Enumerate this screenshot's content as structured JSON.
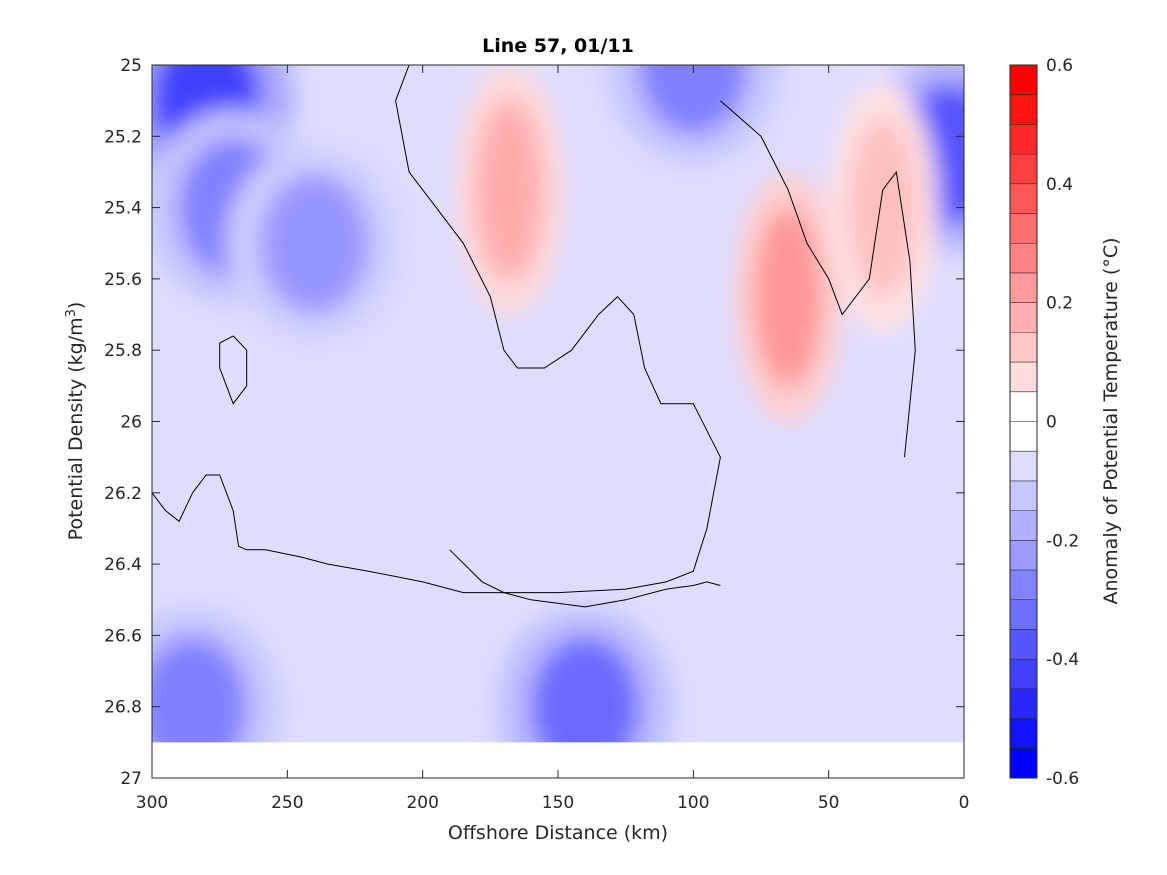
{
  "chart_data": {
    "type": "heatmap",
    "subtype": "filled-contour",
    "title": "Line 57, 01/11",
    "xlabel": "Offshore Distance (km)",
    "ylabel": "Potential Density (kg/m",
    "ylabel_superscript": "3",
    "ylabel_suffix": ")",
    "x_reversed": true,
    "y_reversed": true,
    "xlim": [
      300,
      0
    ],
    "ylim": [
      25,
      27
    ],
    "x_ticks": [
      300,
      250,
      200,
      150,
      100,
      50,
      0
    ],
    "x_tick_labels": [
      "300",
      "250",
      "200",
      "150",
      "100",
      "50",
      "0"
    ],
    "y_ticks": [
      25,
      25.2,
      25.4,
      25.6,
      25.8,
      26,
      26.2,
      26.4,
      26.6,
      26.8,
      27
    ],
    "y_tick_labels": [
      "25",
      "25.2",
      "25.4",
      "25.6",
      "25.8",
      "26",
      "26.2",
      "26.4",
      "26.6",
      "26.8",
      "27"
    ],
    "grid": false,
    "colorbar": {
      "label": "Anomaly of Potential Temperature (°C)",
      "range": [
        -0.6,
        0.6
      ],
      "ticks": [
        0.6,
        0.4,
        0.2,
        0,
        -0.2,
        -0.4,
        -0.6
      ],
      "tick_labels": [
        "0.6",
        "0.4",
        "0.2",
        "0",
        "-0.2",
        "-0.4",
        "-0.6"
      ],
      "levels": 24,
      "negative_color": "#0000ff",
      "positive_color": "#ff0000",
      "neutral_color": "#ffffff"
    },
    "data_extent": {
      "x_range": [
        300,
        0
      ],
      "y_range": [
        25,
        26.9
      ]
    },
    "features": [
      {
        "kind": "cold-core",
        "x": 280,
        "y": 25.1,
        "value": -0.45
      },
      {
        "kind": "cold-core",
        "x": 270,
        "y": 25.4,
        "value": -0.3
      },
      {
        "kind": "cold-core",
        "x": 240,
        "y": 25.5,
        "value": -0.25
      },
      {
        "kind": "cold-core",
        "x": 100,
        "y": 25.0,
        "value": -0.3
      },
      {
        "kind": "cold-core",
        "x": 5,
        "y": 25.25,
        "value": -0.4
      },
      {
        "kind": "warm-core",
        "x": 168,
        "y": 25.35,
        "value": 0.2
      },
      {
        "kind": "warm-core",
        "x": 65,
        "y": 25.65,
        "value": 0.25
      },
      {
        "kind": "warm-core",
        "x": 30,
        "y": 25.4,
        "value": 0.15
      },
      {
        "kind": "cold-core",
        "x": 140,
        "y": 26.8,
        "value": -0.35
      },
      {
        "kind": "cold-core",
        "x": 285,
        "y": 26.8,
        "value": -0.3
      }
    ],
    "zero_contours": [
      {
        "id": "left-loop",
        "points": [
          [
            270,
            25.76
          ],
          [
            265,
            25.8
          ],
          [
            265,
            25.9
          ],
          [
            270,
            25.95
          ],
          [
            275,
            25.85
          ],
          [
            275,
            25.78
          ],
          [
            270,
            25.76
          ]
        ]
      },
      {
        "id": "left-band",
        "points": [
          [
            300,
            26.2
          ],
          [
            295,
            26.25
          ],
          [
            290,
            26.28
          ],
          [
            285,
            26.2
          ],
          [
            280,
            26.15
          ],
          [
            275,
            26.15
          ],
          [
            270,
            26.25
          ],
          [
            268,
            26.35
          ],
          [
            265,
            26.36
          ],
          [
            258,
            26.36
          ],
          [
            245,
            26.38
          ],
          [
            235,
            26.4
          ],
          [
            220,
            26.42
          ],
          [
            200,
            26.45
          ],
          [
            185,
            26.48
          ],
          [
            170,
            26.48
          ],
          [
            160,
            26.5
          ],
          [
            140,
            26.52
          ],
          [
            125,
            26.5
          ],
          [
            110,
            26.47
          ],
          [
            100,
            26.46
          ],
          [
            95,
            26.45
          ],
          [
            90,
            26.46
          ]
        ]
      },
      {
        "id": "central",
        "points": [
          [
            205,
            25.0
          ],
          [
            210,
            25.1
          ],
          [
            205,
            25.3
          ],
          [
            195,
            25.4
          ],
          [
            185,
            25.5
          ],
          [
            175,
            25.65
          ],
          [
            170,
            25.8
          ],
          [
            165,
            25.85
          ],
          [
            155,
            25.85
          ],
          [
            145,
            25.8
          ],
          [
            135,
            25.7
          ],
          [
            128,
            25.65
          ],
          [
            122,
            25.7
          ],
          [
            118,
            25.85
          ],
          [
            112,
            25.95
          ],
          [
            100,
            25.95
          ],
          [
            90,
            26.1
          ],
          [
            95,
            26.3
          ],
          [
            100,
            26.42
          ],
          [
            110,
            26.45
          ],
          [
            125,
            26.47
          ],
          [
            150,
            26.48
          ],
          [
            170,
            26.48
          ],
          [
            178,
            26.45
          ],
          [
            190,
            26.36
          ]
        ]
      },
      {
        "id": "right",
        "points": [
          [
            90,
            25.1
          ],
          [
            75,
            25.2
          ],
          [
            65,
            25.35
          ],
          [
            58,
            25.5
          ],
          [
            50,
            25.6
          ],
          [
            45,
            25.7
          ],
          [
            40,
            25.65
          ],
          [
            35,
            25.6
          ],
          [
            30,
            25.35
          ],
          [
            25,
            25.3
          ],
          [
            20,
            25.55
          ],
          [
            18,
            25.8
          ],
          [
            22,
            26.1
          ]
        ]
      }
    ]
  }
}
